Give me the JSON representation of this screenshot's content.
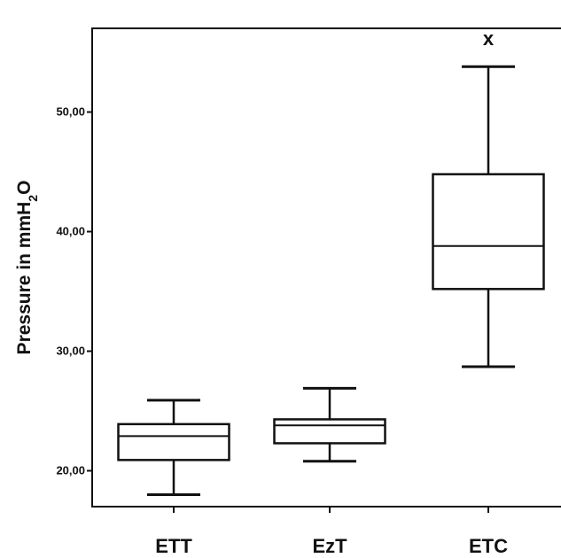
{
  "chart_data": {
    "type": "boxplot",
    "title": "",
    "ylabel": {
      "main": "Pressure in mmH",
      "sub": "2",
      "tail": "O"
    },
    "categories": [
      "ETT",
      "EzT",
      "ETC"
    ],
    "boxes": [
      {
        "name": "ETT",
        "min": 18.0,
        "q1": 20.9,
        "median": 22.9,
        "q3": 23.9,
        "max": 25.9
      },
      {
        "name": "EzT",
        "min": 20.8,
        "q1": 22.3,
        "median": 23.8,
        "q3": 24.3,
        "max": 26.9
      },
      {
        "name": "ETC",
        "min": 28.7,
        "q1": 35.2,
        "median": 38.8,
        "q3": 44.8,
        "max": 53.8
      }
    ],
    "yticks": [
      20,
      30,
      40,
      50
    ],
    "ytick_labels": [
      "20,00",
      "30,00",
      "40,00",
      "50,00"
    ],
    "ylim": [
      17,
      57
    ],
    "annotations": [
      {
        "category": "ETC",
        "text": "x"
      }
    ],
    "grid": false
  }
}
